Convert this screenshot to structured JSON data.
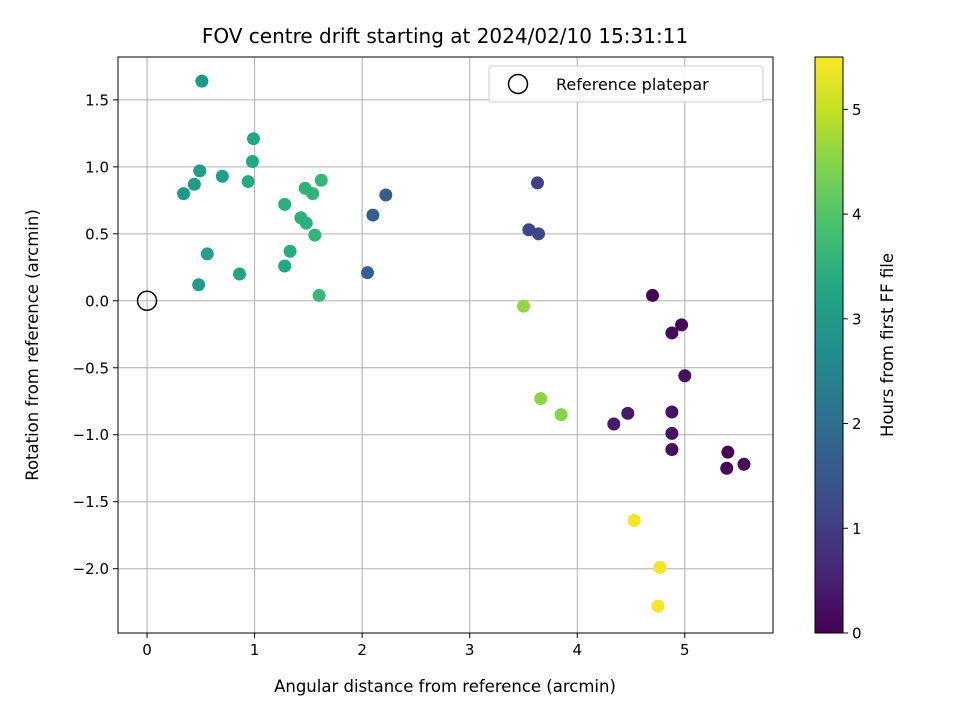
{
  "chart_data": {
    "type": "scatter",
    "title": "FOV centre drift starting at 2024/02/10 15:31:11",
    "xlabel": "Angular distance from reference (arcmin)",
    "ylabel": "Rotation from reference (arcmin)",
    "xlim": [
      -0.27,
      5.82
    ],
    "ylim": [
      -2.48,
      1.82
    ],
    "xticks": [
      0,
      1,
      2,
      3,
      4,
      5
    ],
    "xtick_labels": [
      "0",
      "1",
      "2",
      "3",
      "4",
      "5"
    ],
    "yticks": [
      1.5,
      1.0,
      0.5,
      0.0,
      -0.5,
      -1.0,
      -1.5,
      -2.0
    ],
    "ytick_labels": [
      "1.5",
      "1.0",
      "0.5",
      "0.0",
      "−0.5",
      "−1.0",
      "−1.5",
      "−2.0"
    ],
    "grid": true,
    "legend": {
      "placement": "top-right",
      "entries": [
        {
          "label": "Reference platepar",
          "marker": "open-circle"
        }
      ]
    },
    "reference_point": {
      "x": 0.0,
      "y": 0.0
    },
    "colorbar": {
      "label": "Hours from first FF file",
      "colormap": "viridis",
      "range": [
        0,
        5.5
      ],
      "ticks": [
        0,
        1,
        2,
        3,
        4,
        5
      ],
      "tick_labels": [
        "0",
        "1",
        "2",
        "3",
        "4",
        "5"
      ]
    },
    "points": [
      {
        "x": 4.7,
        "y": 0.04,
        "c": 0.05
      },
      {
        "x": 4.97,
        "y": -0.18,
        "c": 0.1
      },
      {
        "x": 4.88,
        "y": -0.24,
        "c": 0.15
      },
      {
        "x": 5.0,
        "y": -0.56,
        "c": 0.2
      },
      {
        "x": 5.4,
        "y": -1.13,
        "c": 0.05
      },
      {
        "x": 5.39,
        "y": -1.25,
        "c": 0.1
      },
      {
        "x": 5.55,
        "y": -1.22,
        "c": 0.15
      },
      {
        "x": 4.88,
        "y": -1.11,
        "c": 0.2
      },
      {
        "x": 4.88,
        "y": -0.99,
        "c": 0.25
      },
      {
        "x": 4.88,
        "y": -0.83,
        "c": 0.3
      },
      {
        "x": 4.47,
        "y": -0.84,
        "c": 0.35
      },
      {
        "x": 4.34,
        "y": -0.92,
        "c": 0.4
      },
      {
        "x": 3.63,
        "y": 0.88,
        "c": 1.05
      },
      {
        "x": 3.55,
        "y": 0.53,
        "c": 1.1
      },
      {
        "x": 3.64,
        "y": 0.5,
        "c": 1.15
      },
      {
        "x": 2.22,
        "y": 0.79,
        "c": 1.6
      },
      {
        "x": 2.1,
        "y": 0.64,
        "c": 1.65
      },
      {
        "x": 2.05,
        "y": 0.21,
        "c": 1.7
      },
      {
        "x": 0.51,
        "y": 1.64,
        "c": 2.9
      },
      {
        "x": 0.34,
        "y": 0.8,
        "c": 2.95
      },
      {
        "x": 0.44,
        "y": 0.87,
        "c": 3.0
      },
      {
        "x": 0.49,
        "y": 0.97,
        "c": 3.05
      },
      {
        "x": 0.7,
        "y": 0.93,
        "c": 3.1
      },
      {
        "x": 0.56,
        "y": 0.35,
        "c": 3.15
      },
      {
        "x": 0.48,
        "y": 0.12,
        "c": 3.05
      },
      {
        "x": 0.86,
        "y": 0.2,
        "c": 3.2
      },
      {
        "x": 0.99,
        "y": 1.21,
        "c": 3.25
      },
      {
        "x": 0.98,
        "y": 1.04,
        "c": 3.3
      },
      {
        "x": 0.94,
        "y": 0.89,
        "c": 3.35
      },
      {
        "x": 1.28,
        "y": 0.26,
        "c": 3.3
      },
      {
        "x": 1.33,
        "y": 0.37,
        "c": 3.4
      },
      {
        "x": 1.28,
        "y": 0.72,
        "c": 3.45
      },
      {
        "x": 1.43,
        "y": 0.62,
        "c": 3.5
      },
      {
        "x": 1.48,
        "y": 0.58,
        "c": 3.5
      },
      {
        "x": 1.47,
        "y": 0.84,
        "c": 3.55
      },
      {
        "x": 1.54,
        "y": 0.8,
        "c": 3.55
      },
      {
        "x": 1.56,
        "y": 0.49,
        "c": 3.6
      },
      {
        "x": 1.62,
        "y": 0.9,
        "c": 3.6
      },
      {
        "x": 1.6,
        "y": 0.04,
        "c": 3.65
      },
      {
        "x": 3.5,
        "y": -0.04,
        "c": 4.6
      },
      {
        "x": 3.66,
        "y": -0.73,
        "c": 4.55
      },
      {
        "x": 3.85,
        "y": -0.85,
        "c": 4.5
      },
      {
        "x": 4.53,
        "y": -1.64,
        "c": 5.4
      },
      {
        "x": 4.77,
        "y": -1.99,
        "c": 5.4
      },
      {
        "x": 4.75,
        "y": -2.28,
        "c": 5.45
      }
    ]
  }
}
